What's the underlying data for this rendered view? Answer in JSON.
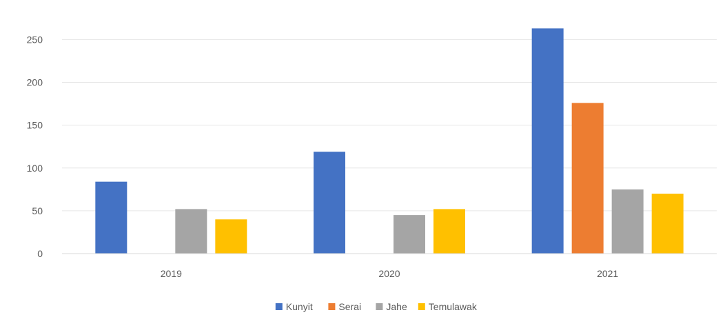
{
  "chart_data": {
    "type": "bar",
    "categories": [
      "2019",
      "2020",
      "2021"
    ],
    "series": [
      {
        "name": "Kunyit",
        "values": [
          84,
          119,
          263
        ],
        "color": "#4472C4"
      },
      {
        "name": "Serai",
        "values": [
          0,
          0,
          176
        ],
        "color": "#ED7D31"
      },
      {
        "name": "Jahe",
        "values": [
          52,
          45,
          75
        ],
        "color": "#A5A5A5"
      },
      {
        "name": "Temulawak",
        "values": [
          40,
          52,
          70
        ],
        "color": "#FFC000"
      }
    ],
    "y_ticks": [
      "0",
      "50",
      "100",
      "150",
      "200",
      "250"
    ],
    "ylim": [
      0,
      260
    ],
    "grid": true,
    "legend_position": "bottom"
  }
}
